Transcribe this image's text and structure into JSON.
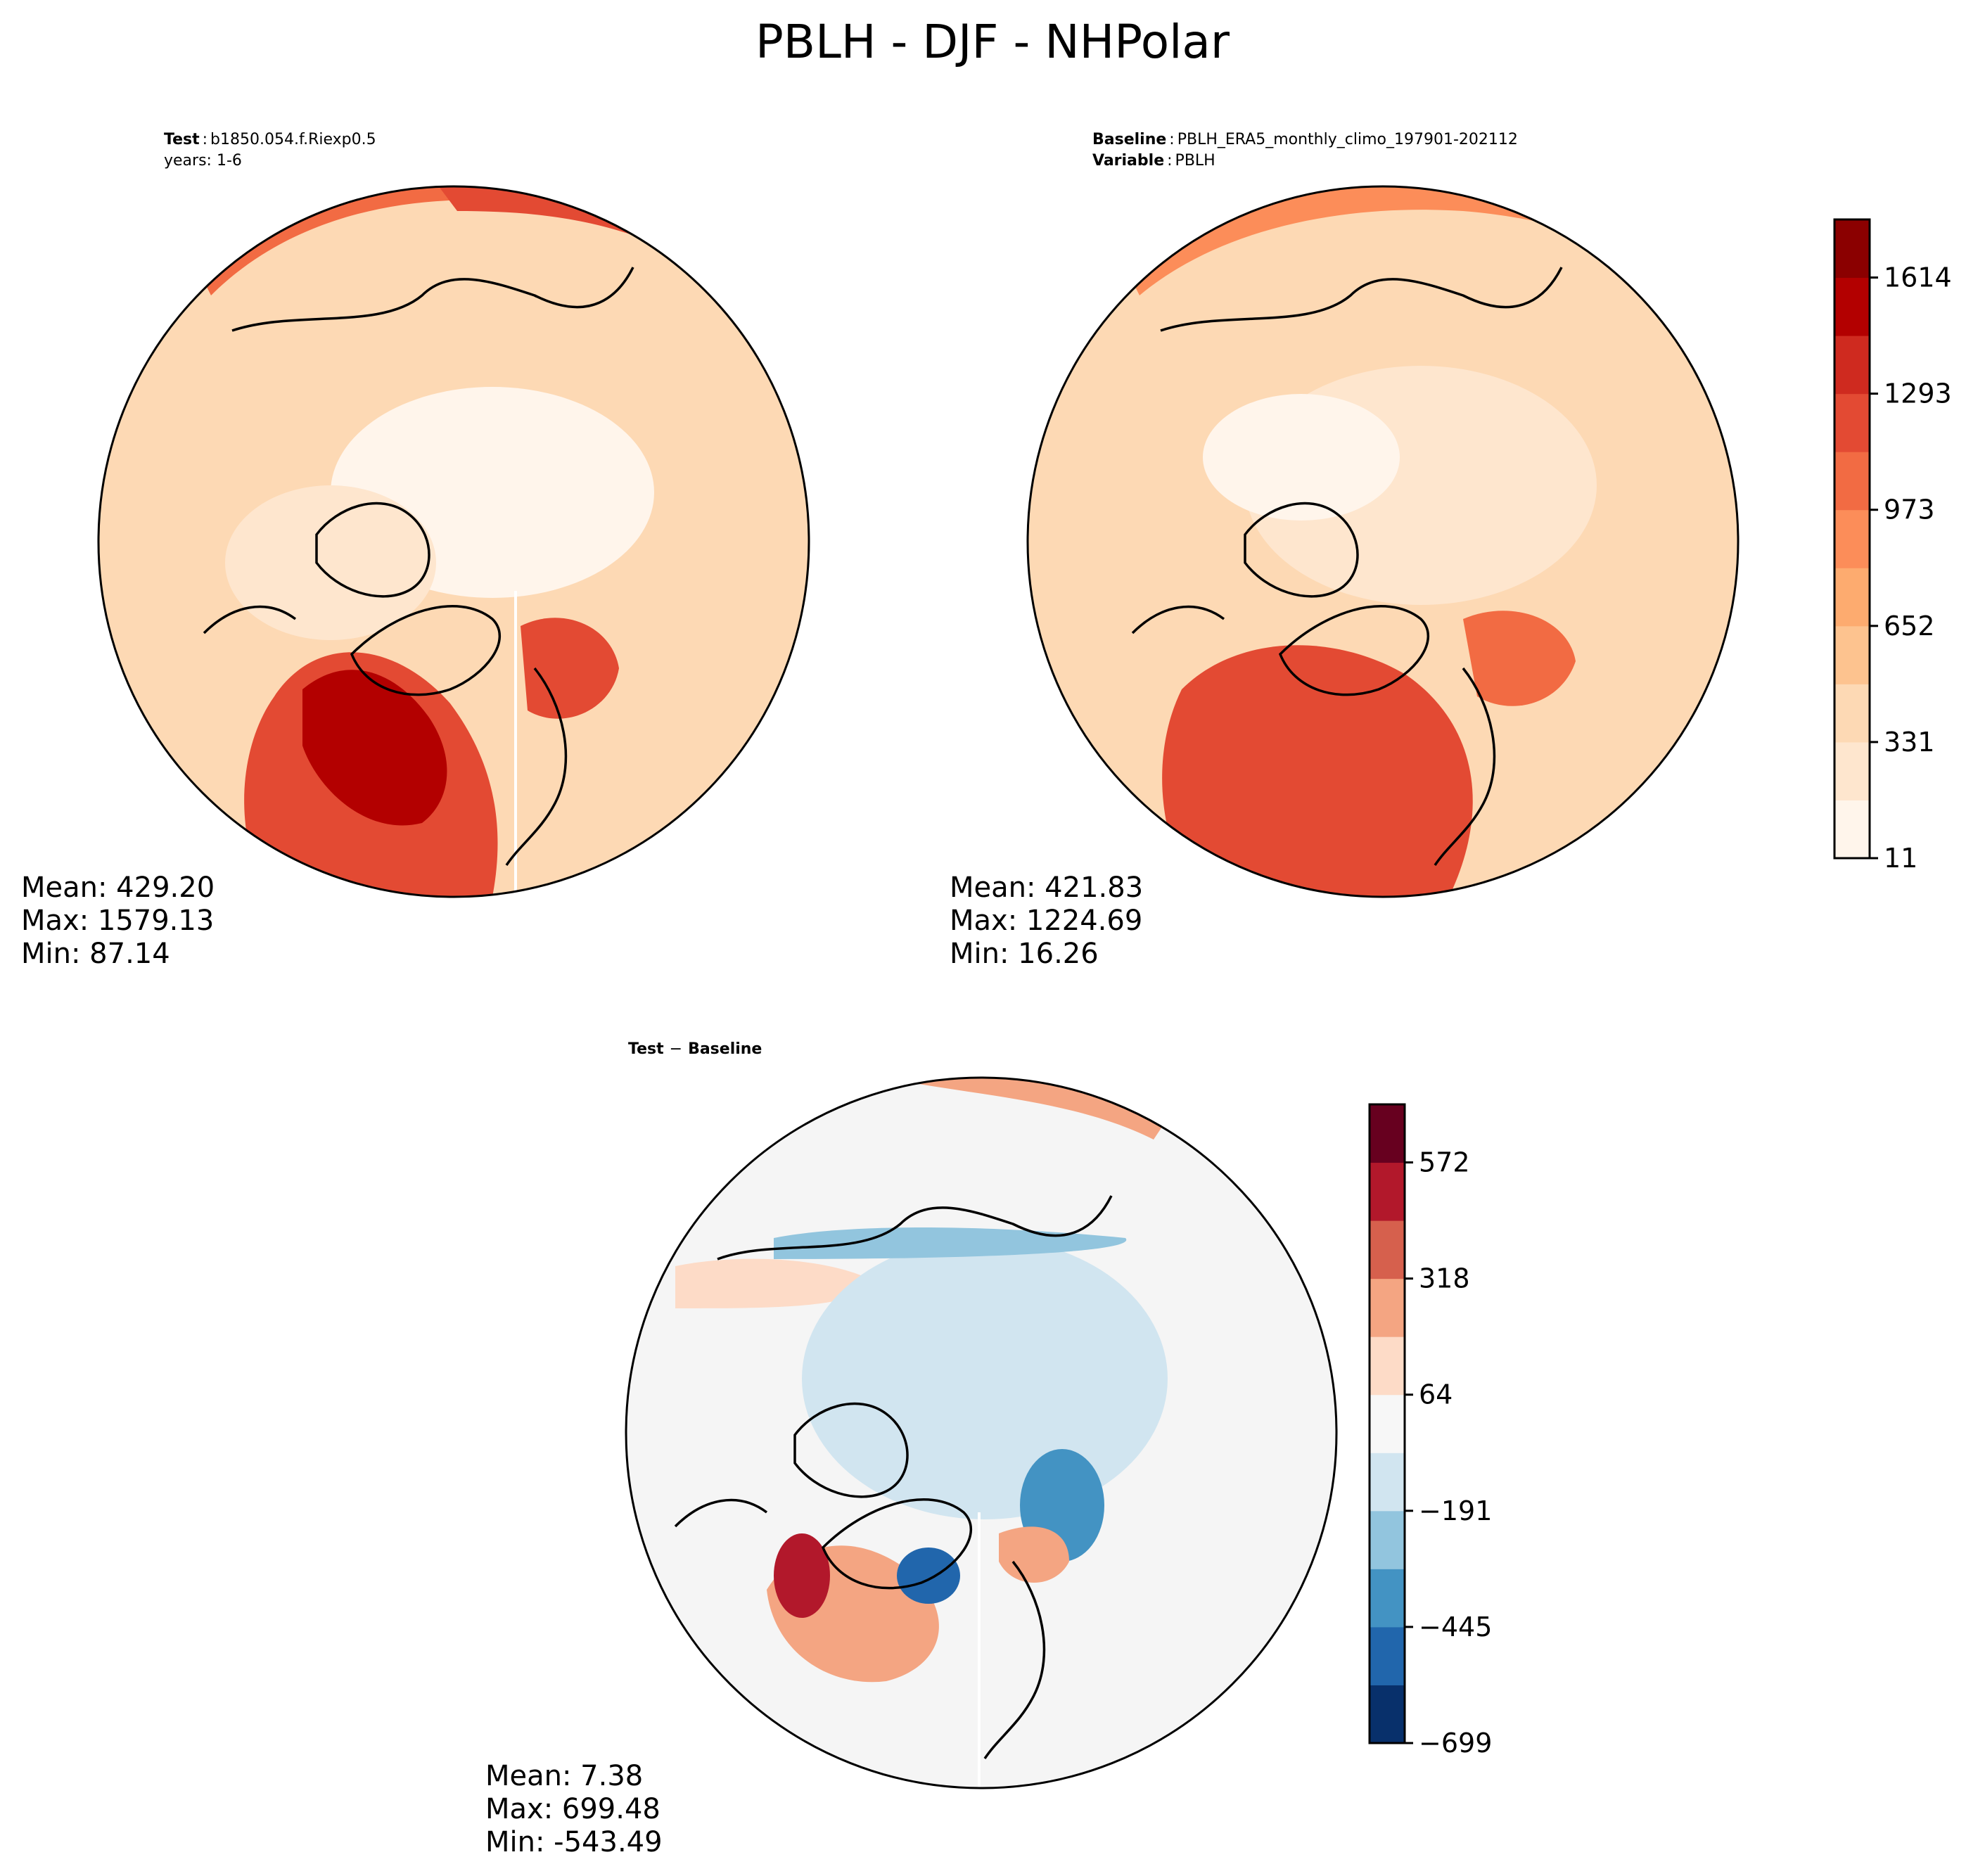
{
  "figure": {
    "title": "PBLH - DJF - NHPolar"
  },
  "panels": {
    "test": {
      "header": {
        "label": "Test",
        "case": "b1850.054.f.Riexp0.5",
        "years": "years: 1-6"
      },
      "stats": {
        "mean": "Mean: 429.20",
        "max": "Max: 1579.13",
        "min": "Min: 87.14"
      }
    },
    "baseline": {
      "header": {
        "label1": "Baseline",
        "case": "PBLH_ERA5_monthly_climo_197901-202112",
        "label2": "Variable",
        "variable": "PBLH"
      },
      "stats": {
        "mean": "Mean: 421.83",
        "max": "Max: 1224.69",
        "min": "Min: 16.26"
      }
    },
    "diff": {
      "header": {
        "left": "Test",
        "op": "−",
        "right": "Baseline"
      },
      "stats": {
        "mean": "Mean:  7.38",
        "max": "Max: 699.48",
        "min": "Min: -543.49"
      }
    }
  },
  "colorbars": {
    "main": {
      "ticks": [
        "11",
        "331",
        "652",
        "973",
        "1293",
        "1614"
      ],
      "colors": [
        "#fff5eb",
        "#fee6ce",
        "#fdd9b4",
        "#fdc38f",
        "#fdab6f",
        "#fc8d59",
        "#f26b43",
        "#e34a33",
        "#cf2a1f",
        "#b30000",
        "#8b0000"
      ]
    },
    "diff": {
      "ticks": [
        "−699",
        "−445",
        "−191",
        "64",
        "318",
        "572"
      ],
      "colors": [
        "#08306b",
        "#2166ac",
        "#4393c3",
        "#92c5de",
        "#d1e5f0",
        "#f7f7f7",
        "#fddbc7",
        "#f4a582",
        "#d6604d",
        "#b2182b",
        "#67001f"
      ]
    }
  },
  "map_colors": {
    "test_base": "#fdd9b4",
    "base_base": "#fdd9b4",
    "diff_base": "#f5f5f5"
  }
}
